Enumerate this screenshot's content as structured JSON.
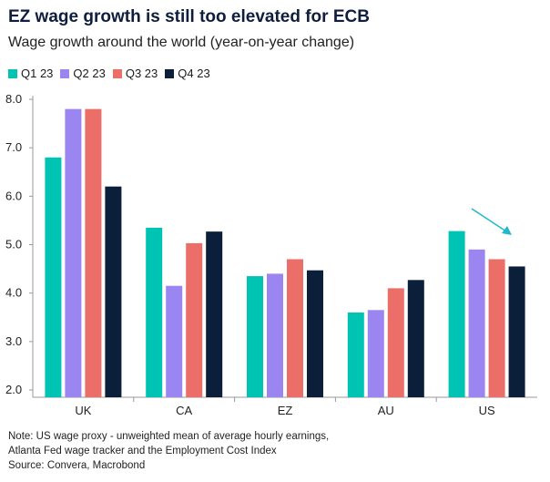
{
  "title": "EZ wage growth is still too elevated for ECB",
  "subtitle": "Wage growth around the world (year-on-year change)",
  "chart_data": {
    "type": "bar",
    "categories": [
      "UK",
      "CA",
      "EZ",
      "AU",
      "US"
    ],
    "series": [
      {
        "name": "Q1 23",
        "color": "#00c4b3",
        "values": [
          6.8,
          5.35,
          4.35,
          3.6,
          5.28
        ]
      },
      {
        "name": "Q2 23",
        "color": "#9b85f0",
        "values": [
          7.8,
          4.15,
          4.4,
          3.65,
          4.9
        ]
      },
      {
        "name": "Q3 23",
        "color": "#eb6e68",
        "values": [
          7.8,
          5.03,
          4.7,
          4.1,
          4.7
        ]
      },
      {
        "name": "Q4 23",
        "color": "#0b1e3a",
        "values": [
          6.2,
          5.27,
          4.47,
          4.27,
          4.55
        ]
      }
    ],
    "yticks": [
      "2.0",
      "3.0",
      "4.0",
      "5.0",
      "6.0",
      "7.0",
      "8.0"
    ],
    "ylim": [
      1.85,
      8.0
    ],
    "annotation_arrow_color": "#22b8cc"
  },
  "notes": {
    "line1": "Note: US wage proxy - unweighted mean of average hourly earnings,",
    "line2": "Atlanta Fed wage tracker and the Employment Cost Index",
    "line3": "Source: Convera, Macrobond"
  }
}
